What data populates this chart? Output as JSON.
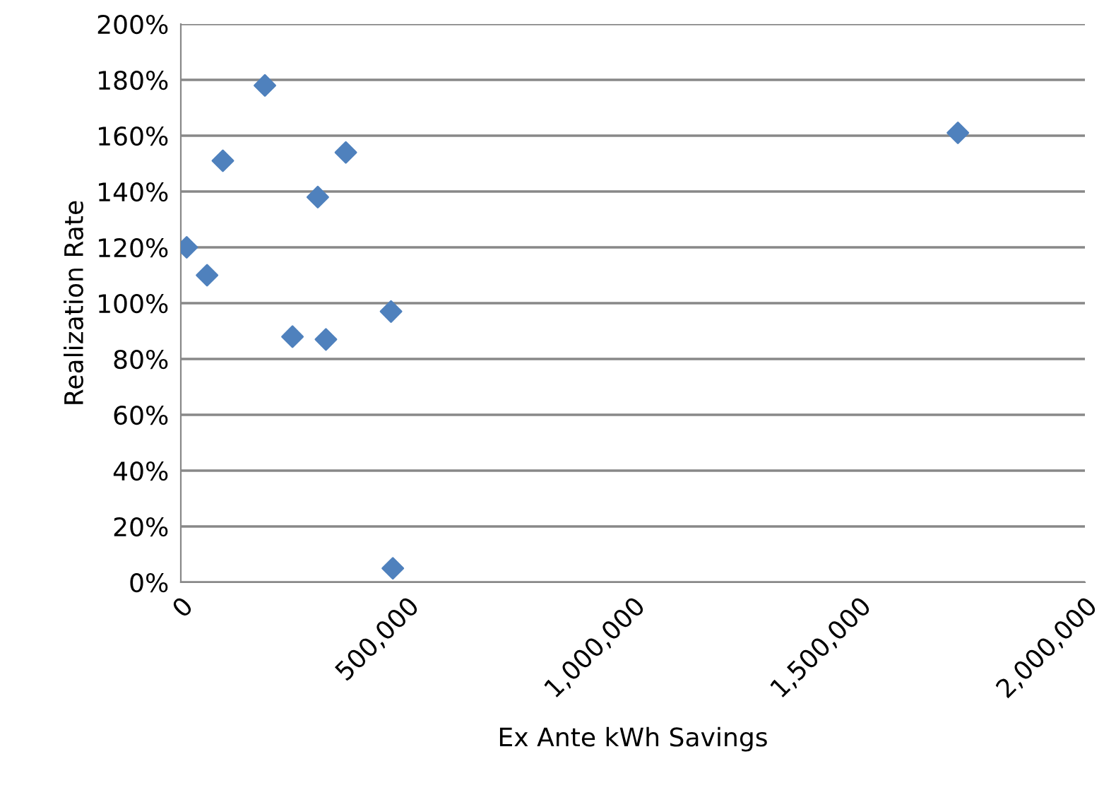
{
  "chart_data": {
    "type": "scatter",
    "xlabel": "Ex Ante kWh Savings",
    "ylabel": "Realization Rate",
    "x": [
      13000,
      58000,
      93000,
      186000,
      303000,
      365000,
      247000,
      321000,
      465000,
      469000,
      1719000
    ],
    "series": [
      {
        "color": "#4f81bd",
        "values": [
          120,
          110,
          151,
          178,
          138,
          154,
          88,
          87,
          97,
          5,
          161
        ]
      }
    ],
    "marker": "diamond",
    "grid": "y",
    "xlim": [
      0,
      2000000
    ],
    "xticks": [
      {
        "value": 0,
        "label": "0"
      },
      {
        "value": 500000,
        "label": "500,000"
      },
      {
        "value": 1000000,
        "label": "1,000,000"
      },
      {
        "value": 1500000,
        "label": "1,500,000"
      },
      {
        "value": 2000000,
        "label": "2,000,000"
      }
    ],
    "ylim": [
      0,
      200
    ],
    "yticks": [
      {
        "value": 0,
        "label": "0%"
      },
      {
        "value": 20,
        "label": "20%"
      },
      {
        "value": 40,
        "label": "40%"
      },
      {
        "value": 60,
        "label": "60%"
      },
      {
        "value": 80,
        "label": "80%"
      },
      {
        "value": 100,
        "label": "100%"
      },
      {
        "value": 120,
        "label": "120%"
      },
      {
        "value": 140,
        "label": "140%"
      },
      {
        "value": 160,
        "label": "160%"
      },
      {
        "value": 180,
        "label": "180%"
      },
      {
        "value": 200,
        "label": "200%"
      }
    ]
  }
}
